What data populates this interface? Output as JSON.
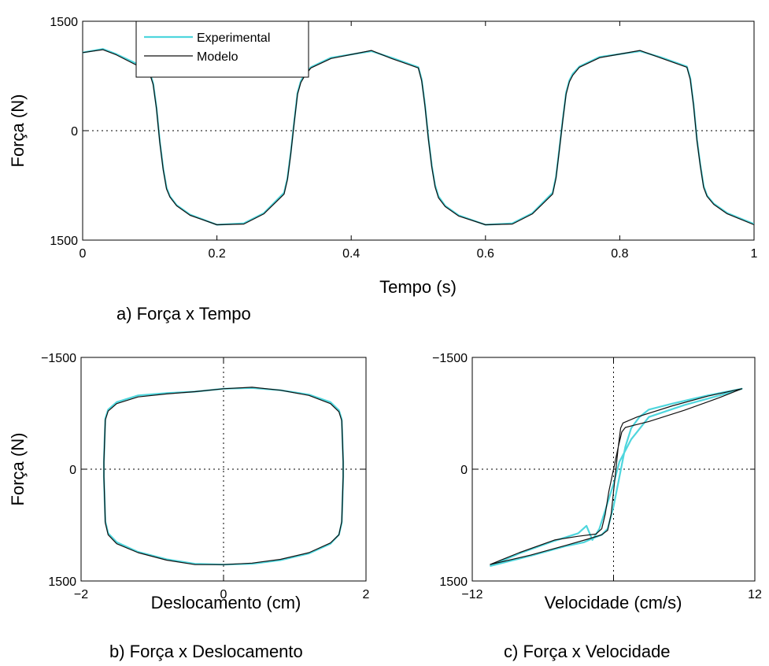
{
  "colors": {
    "experimental": "#4fd6dd",
    "modelo": "#111111"
  },
  "chart_data": [
    {
      "id": "a",
      "type": "line",
      "caption": "a) Força x Tempo",
      "xlabel": "Tempo (s)",
      "ylabel": "Força (N)",
      "xlim": [
        0,
        1
      ],
      "ylim": [
        -1500,
        1500
      ],
      "x_ticks": [
        0,
        0.2,
        0.4,
        0.6,
        0.8,
        1
      ],
      "x_tick_labels": [
        "0",
        "0.2",
        "0.4",
        "0.6",
        "0.8",
        "1"
      ],
      "y_ticks": [
        -1500,
        0,
        1500
      ],
      "y_tick_labels": [
        "1500",
        "0",
        "1500"
      ],
      "zero_lines": {
        "horizontal": true,
        "vertical": false
      },
      "legend": {
        "placement": "top-left",
        "entries": [
          "Experimental",
          "Modelo"
        ]
      },
      "series": [
        {
          "name": "Experimental",
          "x": [
            0,
            0.03,
            0.05,
            0.08,
            0.1,
            0.105,
            0.11,
            0.115,
            0.12,
            0.125,
            0.13,
            0.14,
            0.16,
            0.2,
            0.24,
            0.27,
            0.3,
            0.305,
            0.31,
            0.315,
            0.32,
            0.325,
            0.33,
            0.34,
            0.37,
            0.43,
            0.46,
            0.5,
            0.505,
            0.51,
            0.515,
            0.52,
            0.525,
            0.53,
            0.54,
            0.56,
            0.6,
            0.64,
            0.67,
            0.7,
            0.705,
            0.71,
            0.715,
            0.72,
            0.725,
            0.73,
            0.74,
            0.77,
            0.83,
            0.86,
            0.9,
            0.905,
            0.91,
            0.915,
            0.92,
            0.925,
            0.93,
            0.94,
            0.96,
            1.0
          ],
          "y": [
            1070,
            1120,
            1050,
            920,
            800,
            650,
            320,
            -150,
            -520,
            -780,
            -900,
            -1020,
            -1150,
            -1290,
            -1270,
            -1130,
            -850,
            -650,
            -300,
            120,
            520,
            680,
            760,
            870,
            1000,
            1090,
            1000,
            870,
            700,
            350,
            -100,
            -480,
            -750,
            -900,
            -1030,
            -1160,
            -1290,
            -1270,
            -1130,
            -850,
            -630,
            -250,
            150,
            520,
            690,
            780,
            880,
            1010,
            1090,
            1010,
            880,
            720,
            360,
            -120,
            -470,
            -760,
            -890,
            -1000,
            -1130,
            -1280
          ]
        },
        {
          "name": "Modelo",
          "x": [
            0,
            0.03,
            0.05,
            0.08,
            0.1,
            0.105,
            0.11,
            0.115,
            0.12,
            0.125,
            0.13,
            0.14,
            0.16,
            0.2,
            0.24,
            0.27,
            0.3,
            0.305,
            0.31,
            0.315,
            0.32,
            0.325,
            0.33,
            0.34,
            0.37,
            0.43,
            0.46,
            0.5,
            0.505,
            0.51,
            0.515,
            0.52,
            0.525,
            0.53,
            0.54,
            0.56,
            0.6,
            0.64,
            0.67,
            0.7,
            0.705,
            0.71,
            0.715,
            0.72,
            0.725,
            0.73,
            0.74,
            0.77,
            0.83,
            0.86,
            0.9,
            0.905,
            0.91,
            0.915,
            0.92,
            0.925,
            0.93,
            0.94,
            0.96,
            1.0
          ],
          "y": [
            1070,
            1110,
            1040,
            900,
            780,
            630,
            300,
            -170,
            -540,
            -800,
            -910,
            -1030,
            -1160,
            -1290,
            -1280,
            -1140,
            -870,
            -670,
            -320,
            100,
            500,
            660,
            740,
            860,
            990,
            1100,
            990,
            860,
            680,
            330,
            -120,
            -500,
            -770,
            -920,
            -1040,
            -1170,
            -1290,
            -1280,
            -1140,
            -870,
            -650,
            -270,
            130,
            500,
            670,
            760,
            870,
            1000,
            1100,
            1000,
            870,
            700,
            340,
            -140,
            -490,
            -780,
            -900,
            -1010,
            -1140,
            -1290
          ]
        }
      ]
    },
    {
      "id": "b",
      "type": "line",
      "caption": "b) Força x Deslocamento",
      "xlabel": "Deslocamento (cm)",
      "ylabel": "Força (N)",
      "xlim": [
        -2,
        2
      ],
      "ylim": [
        -1500,
        1500
      ],
      "x_ticks": [
        -2,
        0,
        2
      ],
      "x_tick_labels": [
        "−2",
        "0",
        "2"
      ],
      "y_ticks": [
        -1500,
        0,
        1500
      ],
      "y_tick_labels": [
        "1500",
        "0",
        "−1500"
      ],
      "zero_lines": {
        "horizontal": true,
        "vertical": true
      },
      "series": [
        {
          "name": "Experimental",
          "x": [
            -1.68,
            -1.66,
            -1.62,
            -1.5,
            -1.2,
            -0.8,
            -0.4,
            0.0,
            0.4,
            0.8,
            1.2,
            1.5,
            1.62,
            1.66,
            1.68,
            1.68,
            1.66,
            1.62,
            1.5,
            1.2,
            0.8,
            0.4,
            0.0,
            -0.4,
            -0.8,
            -1.2,
            -1.5,
            -1.62,
            -1.66,
            -1.68,
            -1.68
          ],
          "y": [
            -100,
            -700,
            -860,
            -980,
            -1110,
            -1210,
            -1270,
            -1280,
            -1270,
            -1220,
            -1130,
            -1000,
            -880,
            -720,
            -100,
            100,
            670,
            790,
            900,
            1000,
            1060,
            1090,
            1080,
            1040,
            1020,
            990,
            900,
            800,
            680,
            100,
            -100
          ]
        },
        {
          "name": "Modelo",
          "x": [
            -1.68,
            -1.66,
            -1.62,
            -1.5,
            -1.2,
            -0.8,
            -0.4,
            0.0,
            0.4,
            0.8,
            1.2,
            1.5,
            1.62,
            1.66,
            1.68,
            1.68,
            1.66,
            1.62,
            1.5,
            1.2,
            0.8,
            0.4,
            0.0,
            -0.4,
            -0.8,
            -1.2,
            -1.5,
            -1.62,
            -1.66,
            -1.68,
            -1.68
          ],
          "y": [
            -100,
            -720,
            -880,
            -1000,
            -1120,
            -1220,
            -1280,
            -1280,
            -1260,
            -1210,
            -1120,
            -990,
            -880,
            -700,
            -100,
            100,
            650,
            770,
            880,
            990,
            1060,
            1100,
            1080,
            1040,
            1010,
            970,
            880,
            780,
            660,
            100,
            -100
          ]
        }
      ]
    },
    {
      "id": "c",
      "type": "line",
      "caption": "c) Força x Velocidade",
      "xlabel": "Velocidade (cm/s)",
      "ylabel": "",
      "xlim": [
        -12,
        12
      ],
      "ylim": [
        -1500,
        1500
      ],
      "x_ticks": [
        -12,
        0,
        12
      ],
      "x_tick_labels": [
        "−12",
        "",
        "12"
      ],
      "y_ticks": [
        -1500,
        0,
        1500
      ],
      "y_tick_labels": [
        "1500",
        "0",
        "−1500"
      ],
      "zero_lines": {
        "horizontal": true,
        "vertical": true
      },
      "series": [
        {
          "name": "Experimental",
          "x": [
            -10.5,
            -8.0,
            -5.0,
            -3.0,
            -2.3,
            -1.8,
            -1.2,
            -0.6,
            0.0,
            0.5,
            1.0,
            1.5,
            2.0,
            3.0,
            6.0,
            9.0,
            10.9,
            8.0,
            5.0,
            3.0,
            2.2,
            1.5,
            1.0,
            0.5,
            0.0,
            -0.5,
            -1.0,
            -1.8,
            -2.5,
            -4.0,
            -7.0,
            -10.5
          ],
          "y": [
            -1300,
            -1130,
            -960,
            -860,
            -760,
            -950,
            -800,
            -500,
            -200,
            100,
            250,
            400,
            500,
            700,
            860,
            990,
            1080,
            990,
            880,
            800,
            700,
            550,
            300,
            -100,
            -500,
            -800,
            -880,
            -930,
            -980,
            -1030,
            -1160,
            -1300
          ]
        },
        {
          "name": "Modelo",
          "x": [
            -10.5,
            -8.0,
            -5.0,
            -3.0,
            -1.5,
            -1.0,
            -0.7,
            -0.4,
            0.0,
            0.4,
            0.7,
            1.0,
            1.5,
            3.0,
            6.0,
            9.0,
            10.9,
            8.0,
            5.0,
            2.0,
            0.8,
            0.6,
            0.4,
            0.2,
            0.0,
            -0.2,
            -0.5,
            -1.0,
            -2.0,
            -4.0,
            -7.0,
            -10.5
          ],
          "y": [
            -1280,
            -1120,
            -950,
            -900,
            -870,
            -800,
            -600,
            -300,
            0,
            300,
            500,
            560,
            580,
            640,
            790,
            960,
            1080,
            980,
            850,
            700,
            620,
            550,
            300,
            0,
            -300,
            -600,
            -820,
            -880,
            -930,
            -1020,
            -1150,
            -1280
          ]
        }
      ]
    }
  ]
}
